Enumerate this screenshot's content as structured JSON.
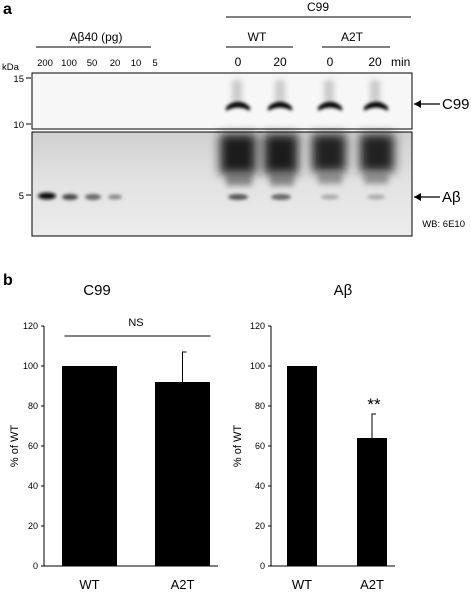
{
  "panel_a": {
    "label": "a",
    "ladder": {
      "title": "Aβ40 (pg)",
      "amounts": [
        "200",
        "100",
        "50",
        "20",
        "10",
        "5"
      ]
    },
    "c99_group": "C99",
    "conditions": [
      {
        "genotype": "WT",
        "times": [
          "0",
          "20"
        ]
      },
      {
        "genotype": "A2T",
        "times": [
          "0",
          "20"
        ]
      }
    ],
    "time_unit": "min",
    "kda_label": "kDa",
    "mw_markers": [
      "15",
      "10",
      "5"
    ],
    "band_labels": {
      "upper": "C99",
      "lower": "Aβ"
    },
    "antibody": "WB: 6E10"
  },
  "panel_b": {
    "label": "b"
  },
  "chart_data": [
    {
      "type": "bar",
      "title": "C99",
      "ylabel": "% of WT",
      "categories": [
        "WT",
        "A2T"
      ],
      "values": [
        100,
        92
      ],
      "error": [
        0,
        15
      ],
      "ylim": [
        0,
        120
      ],
      "yticks": [
        "0",
        "20",
        "40",
        "60",
        "80",
        "100",
        "120"
      ],
      "annotation": "NS"
    },
    {
      "type": "bar",
      "title": "Aβ",
      "ylabel": "% of WT",
      "categories": [
        "WT",
        "A2T"
      ],
      "values": [
        100,
        64
      ],
      "error": [
        0,
        12
      ],
      "ylim": [
        0,
        120
      ],
      "yticks": [
        "0",
        "20",
        "40",
        "60",
        "80",
        "100",
        "120"
      ],
      "annotation": "**"
    }
  ]
}
